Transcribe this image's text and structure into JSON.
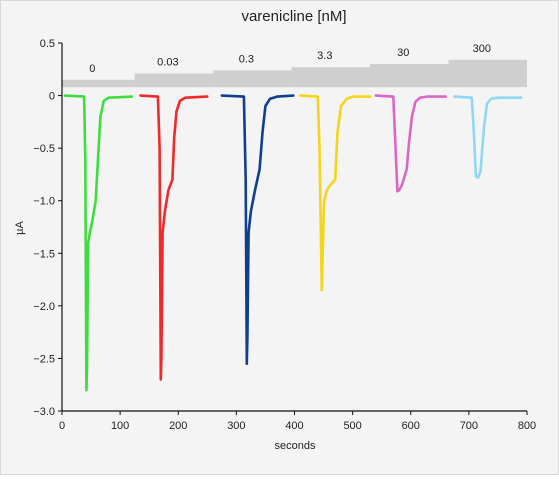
{
  "chart_data": {
    "type": "line",
    "title": "varenicline [nM]",
    "xlabel": "seconds",
    "ylabel": "µA",
    "xlim": [
      0,
      800
    ],
    "ylim": [
      -3.0,
      0.5
    ],
    "x_ticks": [
      0,
      100,
      200,
      300,
      400,
      500,
      600,
      700,
      800
    ],
    "y_ticks": [
      0.5,
      0,
      -0.5,
      -1.0,
      -1.5,
      -2.0,
      -2.5,
      -3.0
    ],
    "y_tick_labels": [
      "0.5",
      "0",
      "−0.5",
      "−1.0",
      "−1.5",
      "−2.0",
      "−2.5",
      "−3.0"
    ],
    "concentration_steps": [
      {
        "label": "0",
        "x_start": 0,
        "x_end": 125,
        "level": 0.15
      },
      {
        "label": "0.03",
        "x_start": 125,
        "x_end": 260,
        "level": 0.21
      },
      {
        "label": "0.3",
        "x_start": 260,
        "x_end": 395,
        "level": 0.24
      },
      {
        "label": "3.3",
        "x_start": 395,
        "x_end": 530,
        "level": 0.27
      },
      {
        "label": "30",
        "x_start": 530,
        "x_end": 665,
        "level": 0.3
      },
      {
        "label": "300",
        "x_start": 665,
        "x_end": 800,
        "level": 0.34
      }
    ],
    "series": [
      {
        "color": "#3fdc3f",
        "points": [
          [
            5,
            0
          ],
          [
            38,
            -0.01
          ],
          [
            40,
            -0.6
          ],
          [
            42,
            -2.8
          ],
          [
            43,
            -2.6
          ],
          [
            45,
            -1.4
          ],
          [
            48,
            -1.3
          ],
          [
            52,
            -1.2
          ],
          [
            58,
            -1.0
          ],
          [
            62,
            -0.6
          ],
          [
            66,
            -0.2
          ],
          [
            72,
            -0.05
          ],
          [
            80,
            -0.02
          ],
          [
            120,
            -0.01
          ]
        ]
      },
      {
        "color": "#ee2a2a",
        "points": [
          [
            135,
            0
          ],
          [
            165,
            -0.01
          ],
          [
            168,
            -0.5
          ],
          [
            170,
            -2.7
          ],
          [
            171,
            -2.5
          ],
          [
            173,
            -1.3
          ],
          [
            177,
            -1.1
          ],
          [
            183,
            -0.9
          ],
          [
            190,
            -0.8
          ],
          [
            193,
            -0.4
          ],
          [
            197,
            -0.15
          ],
          [
            203,
            -0.05
          ],
          [
            212,
            -0.02
          ],
          [
            250,
            -0.01
          ]
        ]
      },
      {
        "color": "#0f3f8f",
        "points": [
          [
            275,
            0
          ],
          [
            313,
            -0.01
          ],
          [
            316,
            -0.8
          ],
          [
            318,
            -2.55
          ],
          [
            319,
            -2.3
          ],
          [
            321,
            -1.3
          ],
          [
            325,
            -1.1
          ],
          [
            332,
            -0.9
          ],
          [
            340,
            -0.7
          ],
          [
            345,
            -0.35
          ],
          [
            350,
            -0.1
          ],
          [
            358,
            -0.03
          ],
          [
            370,
            -0.01
          ],
          [
            398,
            0
          ]
        ]
      },
      {
        "color": "#f5d41c",
        "points": [
          [
            410,
            0
          ],
          [
            440,
            -0.01
          ],
          [
            443,
            -0.5
          ],
          [
            447,
            -1.85
          ],
          [
            448,
            -1.6
          ],
          [
            451,
            -1.0
          ],
          [
            456,
            -0.9
          ],
          [
            462,
            -0.85
          ],
          [
            470,
            -0.8
          ],
          [
            474,
            -0.35
          ],
          [
            480,
            -0.1
          ],
          [
            490,
            -0.03
          ],
          [
            500,
            -0.01
          ],
          [
            530,
            -0.01
          ]
        ]
      },
      {
        "color": "#d967c6",
        "points": [
          [
            540,
            0
          ],
          [
            570,
            -0.01
          ],
          [
            573,
            -0.4
          ],
          [
            577,
            -0.91
          ],
          [
            580,
            -0.9
          ],
          [
            585,
            -0.85
          ],
          [
            593,
            -0.7
          ],
          [
            597,
            -0.45
          ],
          [
            602,
            -0.2
          ],
          [
            608,
            -0.06
          ],
          [
            616,
            -0.02
          ],
          [
            628,
            -0.01
          ],
          [
            660,
            -0.01
          ]
        ]
      },
      {
        "color": "#8fd8f2",
        "points": [
          [
            675,
            -0.01
          ],
          [
            705,
            -0.02
          ],
          [
            709,
            -0.4
          ],
          [
            712,
            -0.77
          ],
          [
            716,
            -0.78
          ],
          [
            720,
            -0.72
          ],
          [
            726,
            -0.3
          ],
          [
            731,
            -0.08
          ],
          [
            738,
            -0.03
          ],
          [
            750,
            -0.02
          ],
          [
            790,
            -0.02
          ]
        ]
      }
    ]
  }
}
